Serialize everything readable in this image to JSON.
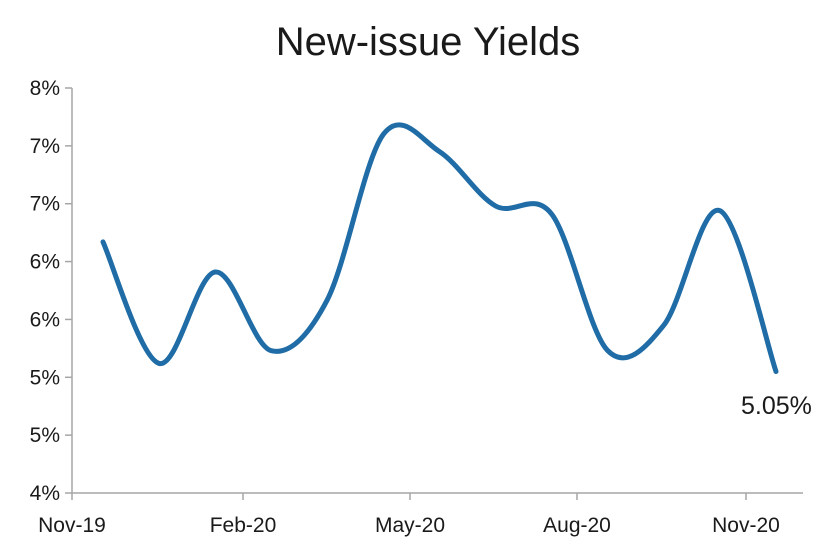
{
  "chart_data": {
    "type": "line",
    "title": "New-issue Yields",
    "xlabel": "",
    "ylabel": "",
    "x": [
      "Nov-19",
      "Dec-19",
      "Jan-20",
      "Feb-20",
      "Mar-20",
      "Apr-20",
      "May-20",
      "Jun-20",
      "Jul-20",
      "Aug-20",
      "Sep-20",
      "Oct-20",
      "Nov-20"
    ],
    "xticks": [
      "Nov-19",
      "Feb-20",
      "May-20",
      "Aug-20",
      "Nov-20"
    ],
    "yticks": [
      "4%",
      "5%",
      "5%",
      "6%",
      "6%",
      "7%",
      "7%",
      "8%"
    ],
    "ylim": [
      4.0,
      7.5
    ],
    "series": [
      {
        "name": "",
        "values": [
          6.17,
          5.12,
          5.91,
          5.23,
          5.67,
          7.1,
          6.95,
          6.48,
          6.41,
          5.23,
          5.45,
          6.44,
          5.05
        ]
      }
    ],
    "annotation": "5.05%",
    "grid": false,
    "color": "#1f6ca6"
  }
}
